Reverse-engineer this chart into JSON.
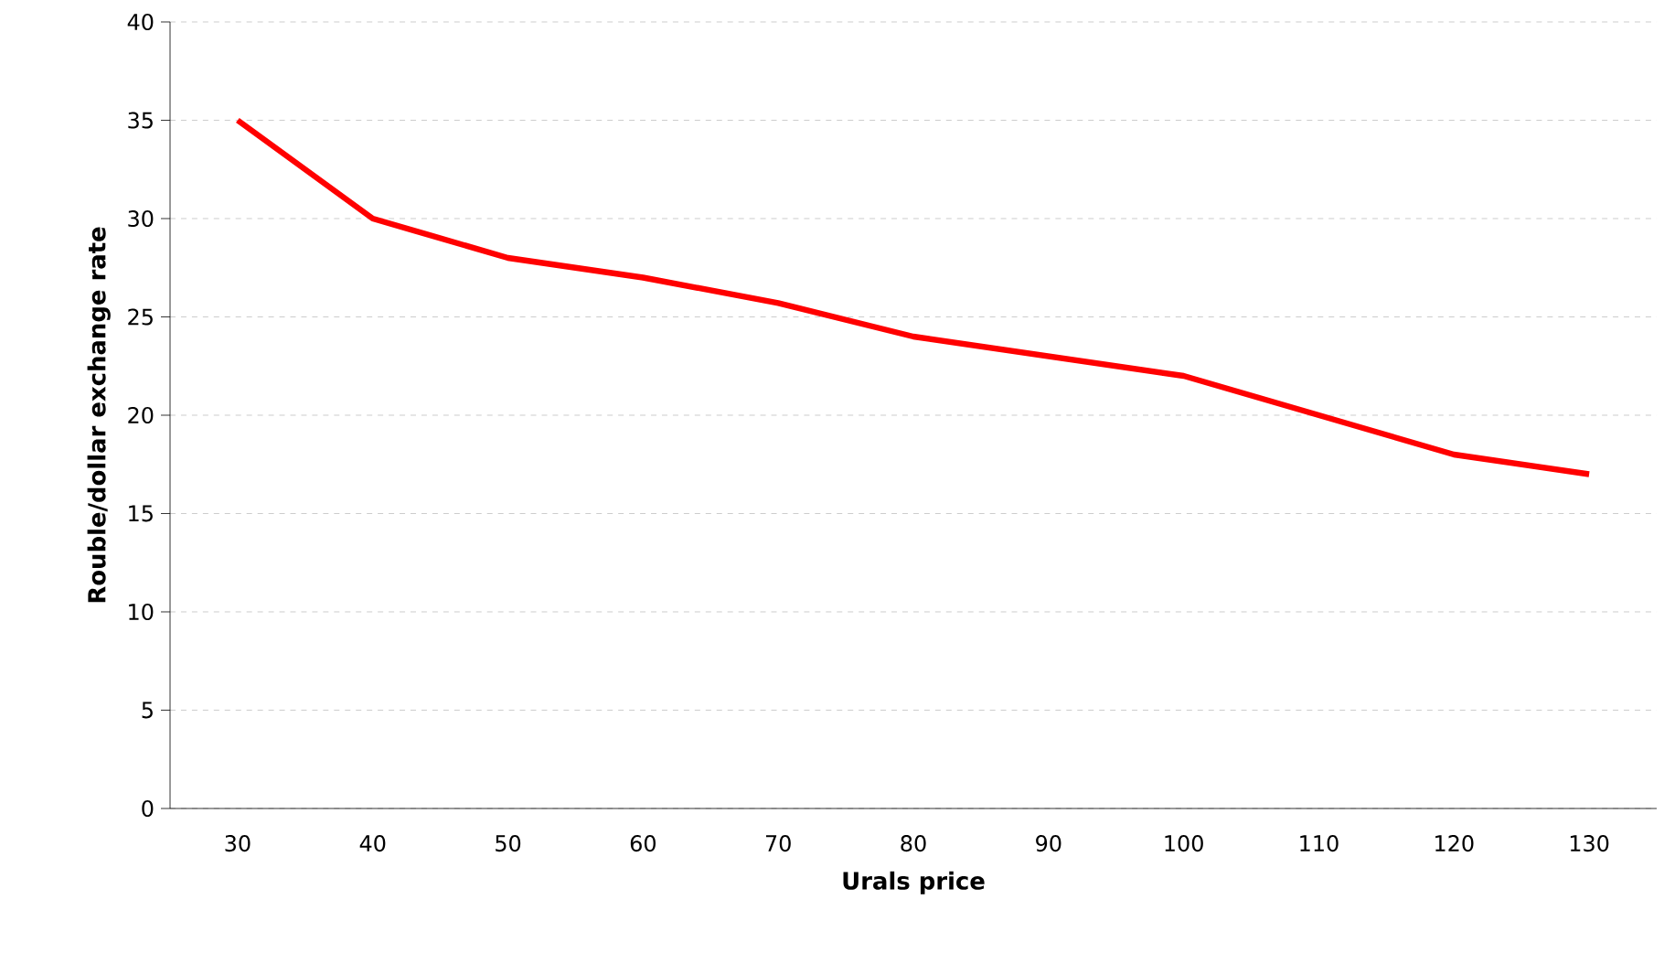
{
  "chart_data": {
    "type": "line",
    "xlabel": "Urals price",
    "ylabel": "Rouble/dollar exchange rate",
    "categories": [
      "30",
      "40",
      "50",
      "60",
      "70",
      "80",
      "90",
      "100",
      "110",
      "120",
      "130"
    ],
    "series": [
      {
        "color": "#ff0000",
        "values": [
          35,
          30,
          28,
          27,
          25.7,
          24,
          23,
          22,
          20,
          18,
          17
        ]
      }
    ],
    "ylim": [
      0,
      40
    ],
    "yticks": [
      0,
      5,
      10,
      15,
      20,
      25,
      30,
      35,
      40
    ],
    "grid": "y",
    "legend": false,
    "marker": "none",
    "line_style": "solid"
  }
}
